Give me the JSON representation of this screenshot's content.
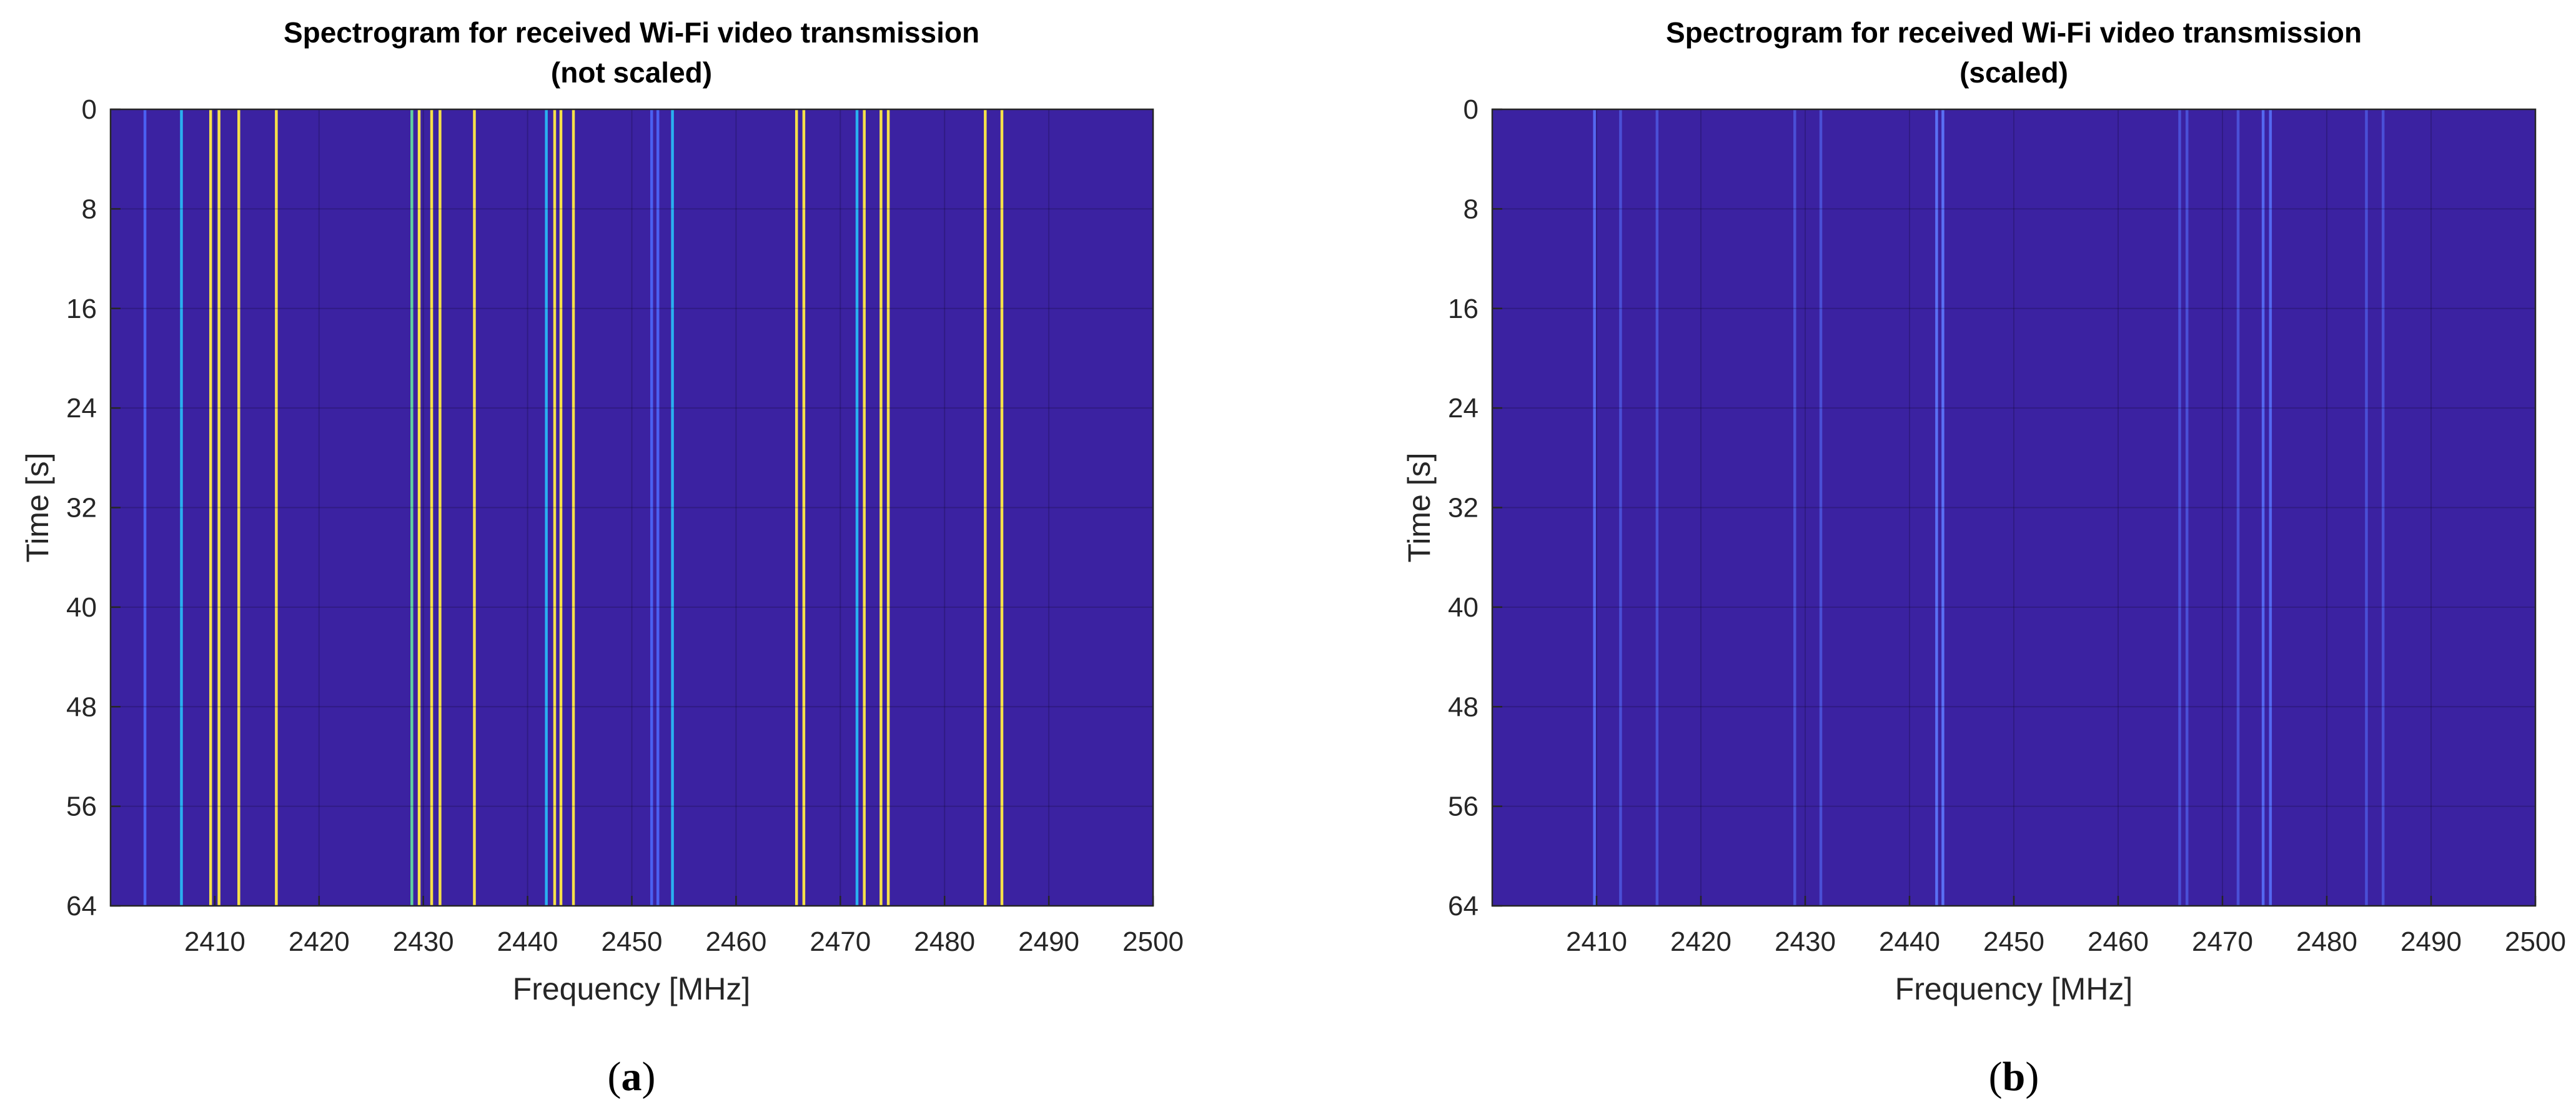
{
  "chart_data": [
    {
      "type": "heatmap",
      "title": "Spectrogram for received Wi-Fi video transmission",
      "subtitle": "(not scaled)",
      "xlabel": "Frequency [MHz]",
      "ylabel": "Time [s]",
      "xlim": [
        2400,
        2500
      ],
      "ylim": [
        0,
        64
      ],
      "y_reversed": true,
      "xticks": [
        2410,
        2420,
        2430,
        2440,
        2450,
        2460,
        2470,
        2480,
        2490,
        2500
      ],
      "yticks": [
        0,
        8,
        16,
        24,
        32,
        40,
        48,
        56,
        64
      ],
      "grid": true,
      "background_color": "#3b22a1",
      "lines": [
        {
          "x": 2403.3,
          "color": "#4a60f2"
        },
        {
          "x": 2406.8,
          "color": "#2ab0f0"
        },
        {
          "x": 2409.6,
          "color": "#f5e04a"
        },
        {
          "x": 2410.4,
          "color": "#f5e04a"
        },
        {
          "x": 2412.3,
          "color": "#f5e04a"
        },
        {
          "x": 2415.9,
          "color": "#f5e04a"
        },
        {
          "x": 2428.9,
          "color": "#5fd0a0"
        },
        {
          "x": 2429.6,
          "color": "#f5e04a"
        },
        {
          "x": 2430.8,
          "color": "#f5e04a"
        },
        {
          "x": 2431.6,
          "color": "#f5e04a"
        },
        {
          "x": 2434.9,
          "color": "#f5e04a"
        },
        {
          "x": 2441.8,
          "color": "#2ab0f0"
        },
        {
          "x": 2442.6,
          "color": "#f5e04a"
        },
        {
          "x": 2443.2,
          "color": "#f5e04a"
        },
        {
          "x": 2444.4,
          "color": "#f5e04a"
        },
        {
          "x": 2451.9,
          "color": "#4a60f2"
        },
        {
          "x": 2452.5,
          "color": "#4a60f2"
        },
        {
          "x": 2453.9,
          "color": "#2ab0f0"
        },
        {
          "x": 2465.8,
          "color": "#f5e04a"
        },
        {
          "x": 2466.5,
          "color": "#f5e04a"
        },
        {
          "x": 2471.6,
          "color": "#2ab0f0"
        },
        {
          "x": 2472.3,
          "color": "#f5e04a"
        },
        {
          "x": 2473.9,
          "color": "#f5e04a"
        },
        {
          "x": 2474.6,
          "color": "#f5e04a"
        },
        {
          "x": 2483.9,
          "color": "#f5e04a"
        },
        {
          "x": 2485.5,
          "color": "#f5e04a"
        }
      ],
      "panel_label": "a"
    },
    {
      "type": "heatmap",
      "title": "Spectrogram for received Wi-Fi video transmission",
      "subtitle": "(scaled)",
      "xlabel": "Frequency [MHz]",
      "ylabel": "Time [s]",
      "xlim": [
        2400,
        2500
      ],
      "ylim": [
        0,
        64
      ],
      "y_reversed": true,
      "xticks": [
        2410,
        2420,
        2430,
        2440,
        2450,
        2460,
        2470,
        2480,
        2490,
        2500
      ],
      "yticks": [
        0,
        8,
        16,
        24,
        32,
        40,
        48,
        56,
        64
      ],
      "grid": true,
      "background_color": "#3b22a1",
      "lines": [
        {
          "x": 2409.8,
          "color": "#5468f0"
        },
        {
          "x": 2412.3,
          "color": "#4a4fd6"
        },
        {
          "x": 2415.8,
          "color": "#4a4fd6"
        },
        {
          "x": 2429.0,
          "color": "#4a4fd6"
        },
        {
          "x": 2431.5,
          "color": "#4a4fd6"
        },
        {
          "x": 2442.6,
          "color": "#5a70f4"
        },
        {
          "x": 2443.2,
          "color": "#5a70f4"
        },
        {
          "x": 2465.9,
          "color": "#4a4fd6"
        },
        {
          "x": 2466.6,
          "color": "#4a4fd6"
        },
        {
          "x": 2471.5,
          "color": "#4a4fd6"
        },
        {
          "x": 2473.9,
          "color": "#5468f0"
        },
        {
          "x": 2474.6,
          "color": "#5468f0"
        },
        {
          "x": 2483.8,
          "color": "#4a4fd6"
        },
        {
          "x": 2485.4,
          "color": "#4a4fd6"
        }
      ],
      "panel_label": "b"
    }
  ]
}
